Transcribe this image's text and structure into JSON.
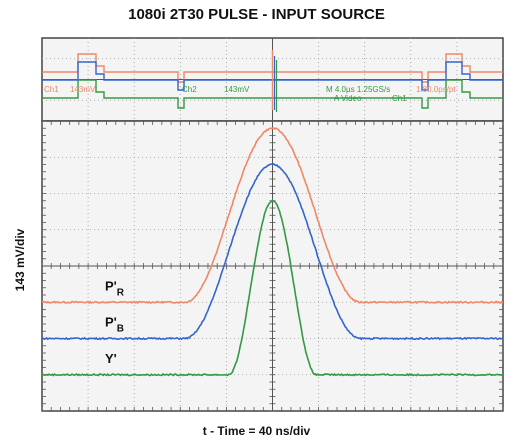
{
  "chart_data": {
    "type": "line",
    "title": "1080i 2T30 PULSE - INPUT SOURCE",
    "xlabel": "t - Time = 40 ns/div",
    "ylabel": "143 mV/div",
    "grid": true,
    "x_unit": "ns",
    "x_per_div": 40,
    "y_per_div_mV": 143,
    "divisions": {
      "x": 10,
      "y": 8
    },
    "xlim": [
      -200,
      200
    ],
    "series": [
      {
        "name": "P'R",
        "color": "#ee8866",
        "baseline_div": -1.0,
        "pulse_amplitude_div": 4.8,
        "half_amplitude_duration_ns": 76
      },
      {
        "name": "P'B",
        "color": "#3366cc",
        "baseline_div": -2.0,
        "pulse_amplitude_div": 4.8,
        "half_amplitude_duration_ns": 76
      },
      {
        "name": "Y'",
        "color": "#339944",
        "baseline_div": -3.0,
        "pulse_amplitude_div": 4.8,
        "half_amplitude_duration_ns": 38
      }
    ],
    "trace_labels": [
      {
        "main": "P'",
        "sub": "R",
        "series": "P'R"
      },
      {
        "main": "P'",
        "sub": "B",
        "series": "P'B"
      },
      {
        "main": "Y'",
        "sub": "",
        "series": "Y'"
      }
    ],
    "overview": {
      "readouts": [
        {
          "text": "Ch1",
          "color": "#ee8866"
        },
        {
          "text": "143mV",
          "color": "#ee8866"
        },
        {
          "text": "Ch2",
          "color": "#339944"
        },
        {
          "text": "143mV",
          "color": "#339944"
        },
        {
          "text": "M 4.0µs 1.25GS/s",
          "color": "#339944"
        },
        {
          "text": "1.80.0ps/pt",
          "color": "#ee8866"
        },
        {
          "text": "A  Video",
          "color": "#339944"
        },
        {
          "text": "Ch1",
          "color": "#339944"
        }
      ]
    }
  }
}
